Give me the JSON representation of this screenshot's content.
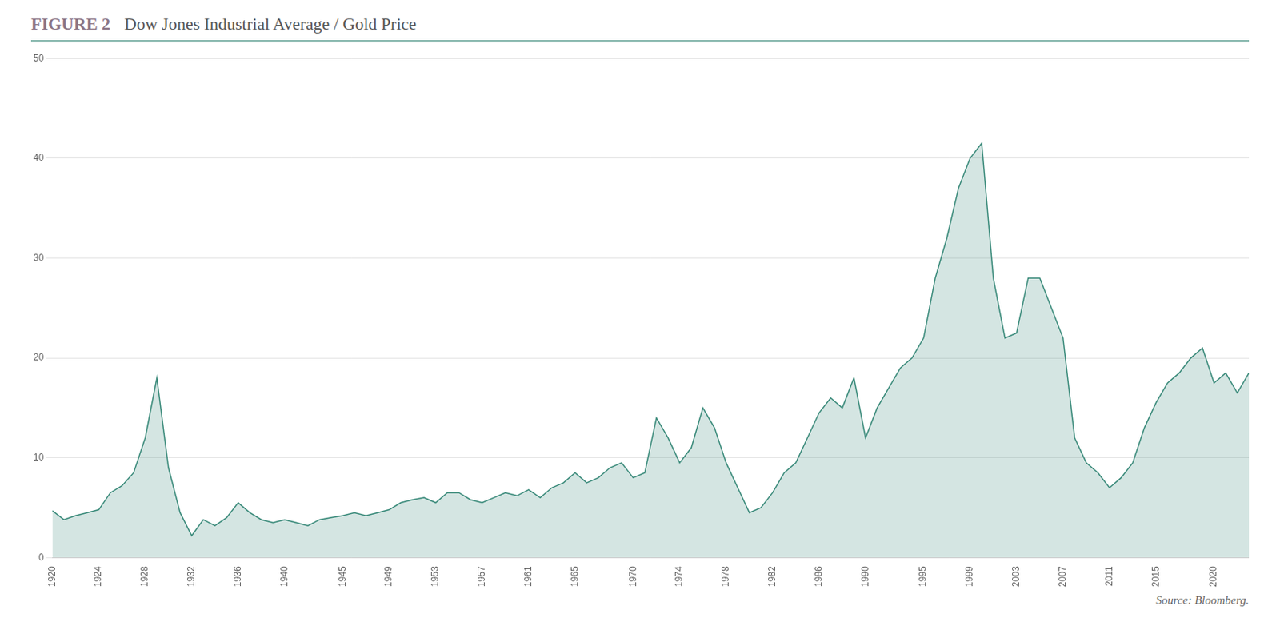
{
  "chart_data": {
    "type": "area",
    "title": "Dow Jones Industrial Average / Gold Price",
    "annotations": [
      "FIGURE 2",
      "Source: Bloomberg."
    ],
    "color": "#3a8a7a",
    "x": [
      1920,
      1921,
      1922,
      1923,
      1924,
      1925,
      1926,
      1927,
      1928,
      1929,
      1930,
      1931,
      1932,
      1933,
      1934,
      1935,
      1936,
      1937,
      1938,
      1939,
      1940,
      1941,
      1942,
      1943,
      1944,
      1945,
      1946,
      1947,
      1948,
      1949,
      1950,
      1951,
      1952,
      1953,
      1954,
      1955,
      1956,
      1957,
      1958,
      1959,
      1960,
      1961,
      1962,
      1963,
      1964,
      1965,
      1966,
      1967,
      1968,
      1969,
      1970,
      1971,
      1972,
      1973,
      1974,
      1975,
      1976,
      1977,
      1978,
      1979,
      1980,
      1981,
      1982,
      1983,
      1984,
      1985,
      1986,
      1987,
      1988,
      1989,
      1990,
      1991,
      1992,
      1993,
      1994,
      1995,
      1996,
      1997,
      1998,
      1999,
      2000,
      2001,
      2002,
      2003,
      2004,
      2005,
      2006,
      2007,
      2008,
      2009,
      2010,
      2011,
      2012,
      2013,
      2014,
      2015,
      2016,
      2017,
      2018,
      2019,
      2020,
      2021,
      2022,
      2023
    ],
    "values": [
      4.7,
      3.8,
      4.2,
      4.5,
      4.8,
      6.5,
      7.2,
      8.5,
      12.0,
      18.0,
      9.0,
      4.5,
      2.2,
      3.8,
      3.2,
      4.0,
      5.5,
      4.5,
      3.8,
      3.5,
      3.8,
      3.5,
      3.2,
      3.8,
      4.0,
      4.2,
      4.5,
      4.2,
      4.5,
      4.8,
      5.5,
      5.8,
      6.0,
      5.5,
      6.5,
      6.5,
      5.8,
      5.5,
      6.0,
      6.5,
      6.2,
      6.8,
      6.0,
      7.0,
      7.5,
      8.5,
      7.5,
      8.0,
      9.0,
      9.5,
      8.0,
      8.5,
      14.0,
      12.0,
      9.5,
      11.0,
      15.0,
      13.0,
      9.5,
      7.0,
      4.5,
      5.0,
      6.5,
      8.5,
      9.5,
      12.0,
      14.5,
      16.0,
      15.0,
      18.0,
      12.0,
      15.0,
      17.0,
      19.0,
      20.0,
      22.0,
      28.0,
      32.0,
      37.0,
      40.0,
      41.5,
      28.0,
      22.0,
      22.5,
      28.0,
      28.0,
      25.0,
      22.0,
      12.0,
      9.5,
      8.5,
      7.0,
      8.0,
      9.5,
      13.0,
      15.5,
      17.5,
      18.5,
      20.0,
      21.0,
      17.5,
      18.5,
      16.5,
      18.5
    ],
    "xlim": [
      1920,
      2023
    ],
    "xticks": [
      1920,
      1924,
      1928,
      1932,
      1936,
      1940,
      1945,
      1949,
      1953,
      1957,
      1961,
      1965,
      1970,
      1974,
      1978,
      1982,
      1986,
      1990,
      1995,
      1999,
      2003,
      2007,
      2011,
      2015,
      2020
    ],
    "ylim": [
      0,
      50
    ],
    "yticks": [
      0,
      10,
      20,
      30,
      40,
      50
    ],
    "grid": true
  }
}
